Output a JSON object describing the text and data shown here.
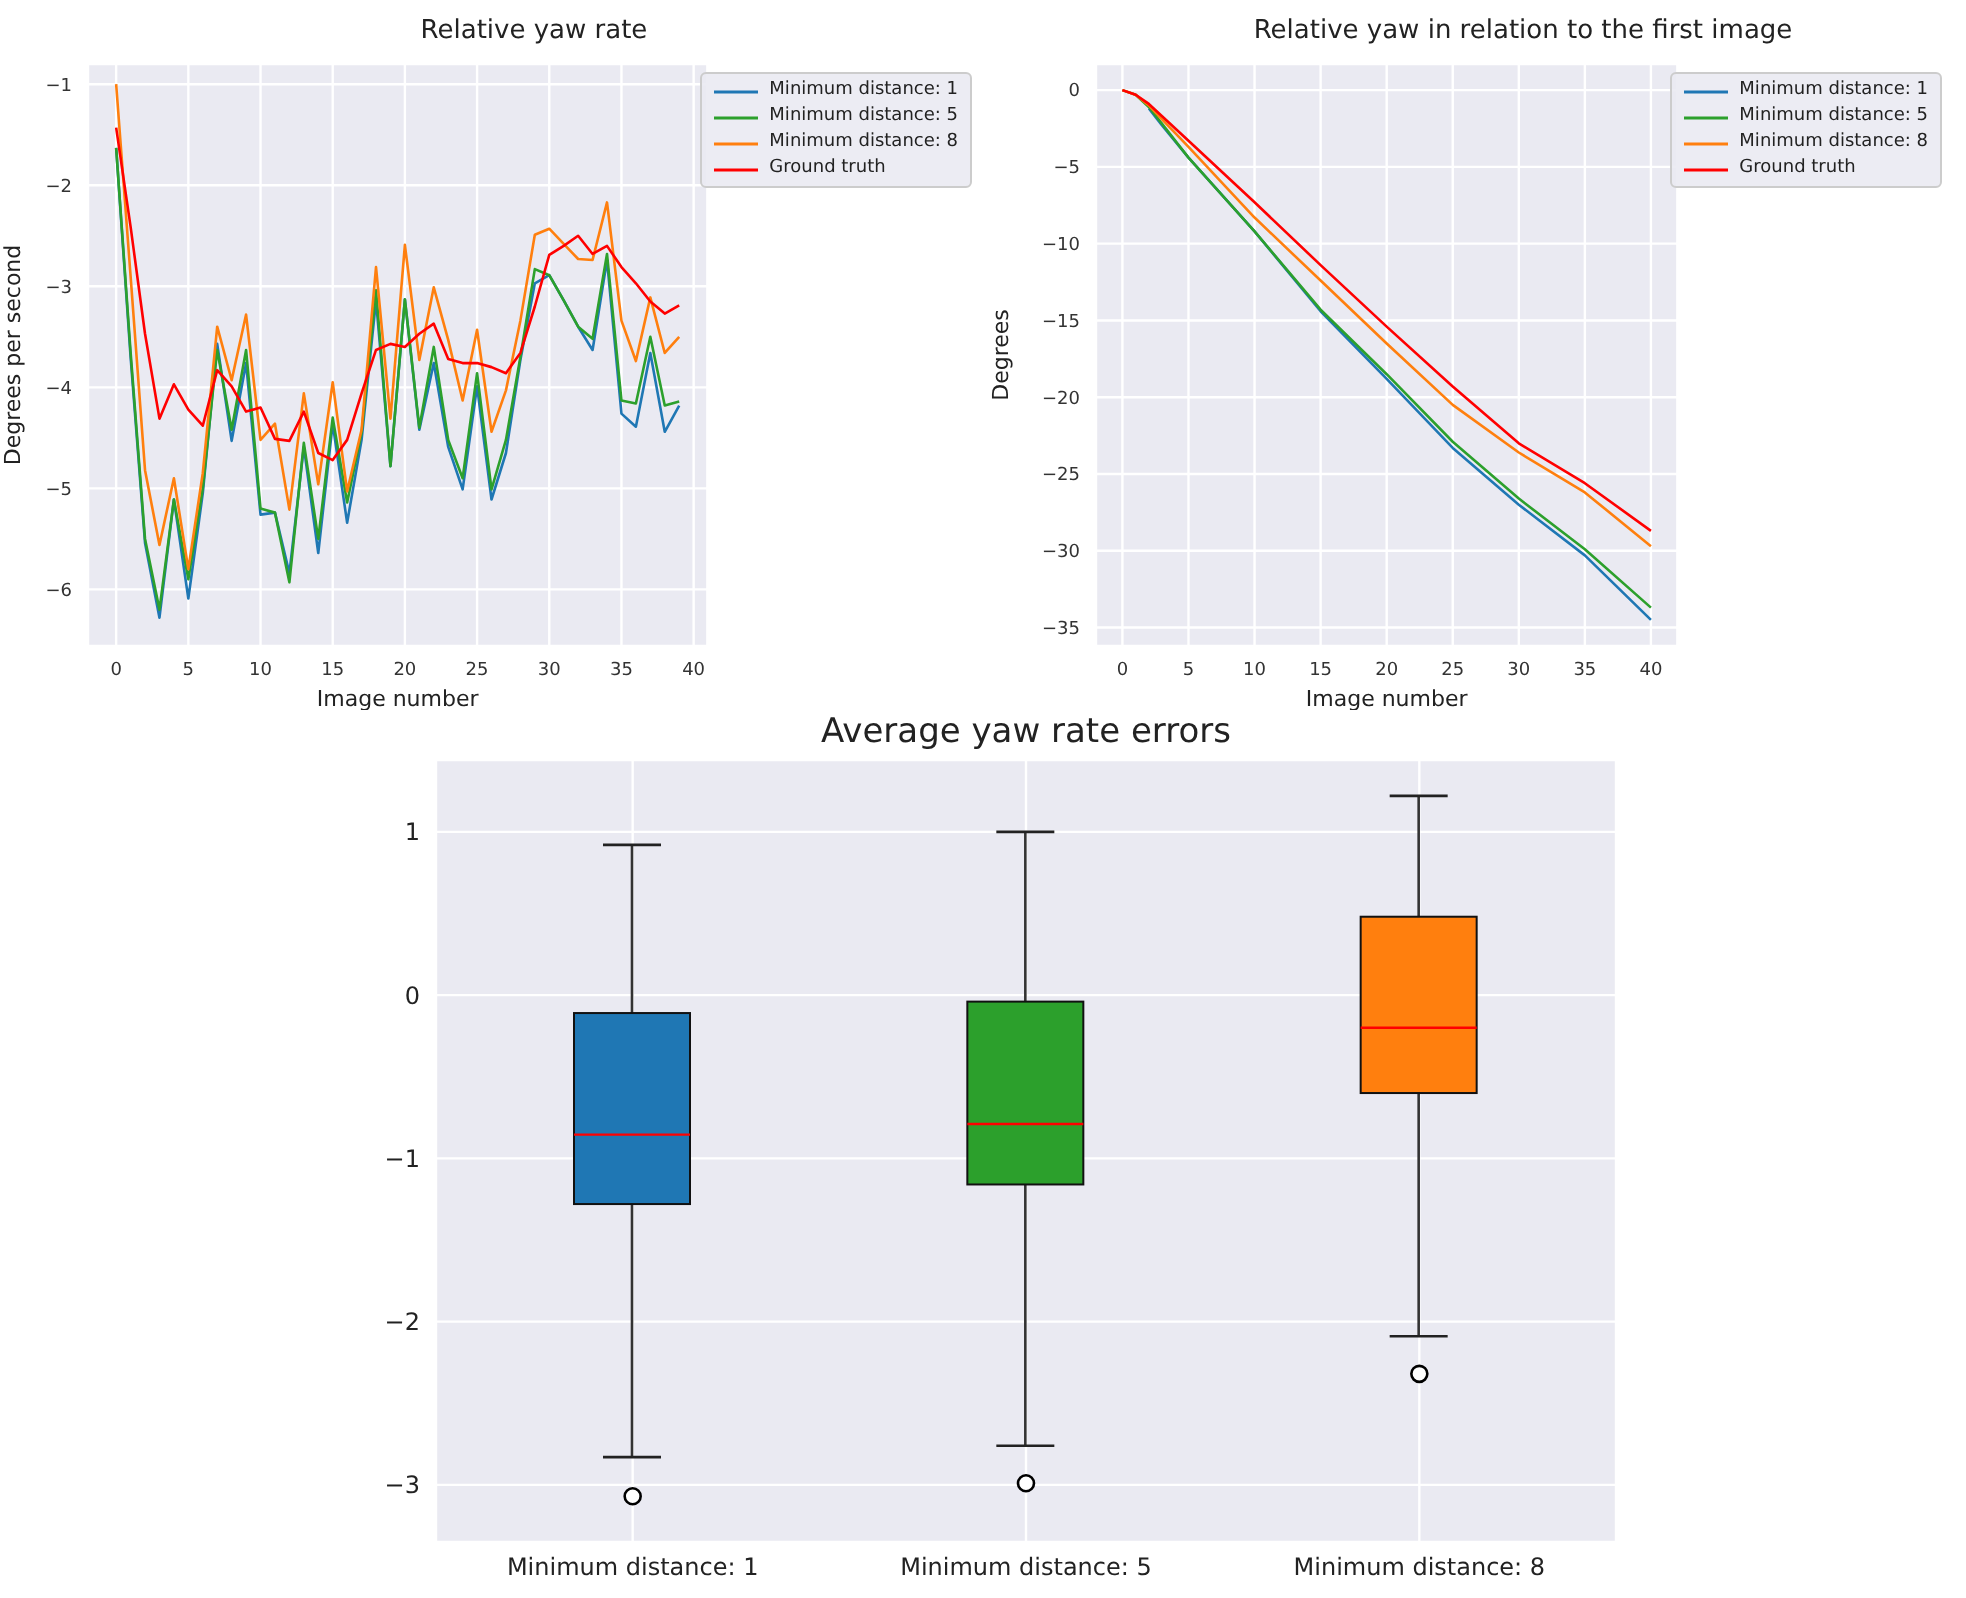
{
  "chart_data": [
    {
      "type": "line",
      "title": "Relative yaw rate",
      "xlabel": "Image number",
      "ylabel": "Degrees per second",
      "x": [
        0,
        1,
        2,
        3,
        4,
        5,
        6,
        7,
        8,
        9,
        10,
        11,
        12,
        13,
        14,
        15,
        16,
        17,
        18,
        19,
        20,
        21,
        22,
        23,
        24,
        25,
        26,
        27,
        28,
        29,
        30,
        31,
        32,
        33,
        34,
        35,
        36,
        37,
        38,
        39
      ],
      "xlim": [
        -1.95,
        40.95
      ],
      "xticks": [
        0,
        5,
        10,
        15,
        20,
        25,
        30,
        35,
        40
      ],
      "ylim": [
        -6.56,
        -0.8
      ],
      "yticks": [
        -6,
        -5,
        -4,
        -3,
        -2,
        -1
      ],
      "grid": true,
      "legend": "top right",
      "series": [
        {
          "name": "Minimum distance: 1",
          "color": "#1f77b4",
          "values": [
            -1.63,
            -3.7,
            -5.54,
            -6.28,
            -5.11,
            -6.09,
            -5.05,
            -3.57,
            -4.53,
            -3.76,
            -5.26,
            -5.24,
            -5.84,
            -4.59,
            -5.64,
            -4.36,
            -5.34,
            -4.52,
            -3.14,
            -4.78,
            -3.13,
            -4.42,
            -3.76,
            -4.59,
            -5.01,
            -3.99,
            -5.11,
            -4.65,
            -3.73,
            -2.97,
            -2.89,
            -3.14,
            -3.4,
            -3.63,
            -2.74,
            -4.26,
            -4.39,
            -3.66,
            -4.44,
            -4.18
          ]
        },
        {
          "name": "Minimum distance: 5",
          "color": "#2ca02c",
          "values": [
            -1.63,
            -3.65,
            -5.5,
            -6.2,
            -5.11,
            -5.9,
            -5.0,
            -3.63,
            -4.42,
            -3.63,
            -5.2,
            -5.24,
            -5.93,
            -4.55,
            -5.5,
            -4.3,
            -5.14,
            -4.45,
            -3.04,
            -4.78,
            -3.13,
            -4.4,
            -3.6,
            -4.52,
            -4.9,
            -3.86,
            -5.01,
            -4.52,
            -3.7,
            -2.83,
            -2.89,
            -3.14,
            -3.4,
            -3.52,
            -2.68,
            -4.13,
            -4.16,
            -3.5,
            -4.18,
            -4.14
          ]
        },
        {
          "name": "Minimum distance: 8",
          "color": "#ff7f0e",
          "values": [
            -1.0,
            -2.9,
            -4.82,
            -5.56,
            -4.9,
            -5.8,
            -4.85,
            -3.4,
            -3.93,
            -3.28,
            -4.52,
            -4.36,
            -5.21,
            -4.06,
            -4.96,
            -3.95,
            -5.03,
            -4.42,
            -2.81,
            -4.31,
            -2.59,
            -3.73,
            -3.01,
            -3.53,
            -4.13,
            -3.43,
            -4.44,
            -4.03,
            -3.34,
            -2.49,
            -2.43,
            -2.58,
            -2.73,
            -2.74,
            -2.17,
            -3.34,
            -3.74,
            -3.11,
            -3.66,
            -3.5
          ]
        },
        {
          "name": "Ground truth",
          "color": "#ff0000",
          "values": [
            -1.43,
            -2.41,
            -3.47,
            -4.31,
            -3.97,
            -4.22,
            -4.38,
            -3.83,
            -3.99,
            -4.24,
            -4.2,
            -4.51,
            -4.53,
            -4.24,
            -4.65,
            -4.72,
            -4.52,
            -4.06,
            -3.63,
            -3.57,
            -3.6,
            -3.47,
            -3.37,
            -3.72,
            -3.76,
            -3.76,
            -3.8,
            -3.86,
            -3.66,
            -3.2,
            -2.69,
            -2.6,
            -2.5,
            -2.68,
            -2.6,
            -2.81,
            -2.97,
            -3.15,
            -3.27,
            -3.19
          ]
        }
      ]
    },
    {
      "type": "line",
      "title": "Relative yaw in relation to the first image",
      "xlabel": "Image number",
      "ylabel": "Degrees",
      "x": [
        0,
        1,
        2,
        3,
        5,
        10,
        15,
        20,
        25,
        30,
        35,
        40
      ],
      "xlim": [
        -2,
        42
      ],
      "xticks": [
        0,
        5,
        10,
        15,
        20,
        25,
        30,
        35,
        40
      ],
      "ylim": [
        -36.2,
        1.7
      ],
      "yticks": [
        -35,
        -30,
        -25,
        -20,
        -15,
        -10,
        -5,
        0
      ],
      "grid": true,
      "legend": "top right",
      "series": [
        {
          "name": "Minimum distance: 1",
          "color": "#1f77b4",
          "values": [
            null,
            null,
            -1.2,
            -2.3,
            -4.4,
            -9.2,
            -14.4,
            -18.8,
            -23.3,
            -27.0,
            -30.3,
            -34.5
          ]
        },
        {
          "name": "Minimum distance: 5",
          "color": "#2ca02c",
          "values": [
            0,
            -0.3,
            -1.1,
            -2.2,
            -4.4,
            -9.2,
            -14.3,
            -18.5,
            -22.9,
            -26.6,
            -29.9,
            -33.7
          ]
        },
        {
          "name": "Minimum distance: 8",
          "color": "#ff7f0e",
          "values": [
            0,
            -0.3,
            -1.0,
            -1.9,
            -3.7,
            -8.3,
            -12.4,
            -16.5,
            -20.5,
            -23.6,
            -26.2,
            -29.7
          ]
        },
        {
          "name": "Ground truth",
          "color": "#ff0000",
          "values": [
            0,
            -0.3,
            -0.9,
            -1.7,
            -3.3,
            -7.3,
            -11.4,
            -15.4,
            -19.3,
            -23.0,
            -25.6,
            -28.7
          ]
        }
      ]
    },
    {
      "type": "box",
      "title": "Average yaw rate errors",
      "categories": [
        "Minimum distance: 1",
        "Minimum distance: 5",
        "Minimum distance: 8"
      ],
      "colors": [
        "#1f77b4",
        "#2ca02c",
        "#ff7f0e"
      ],
      "ylim": [
        -3.35,
        1.44
      ],
      "yticks": [
        -3,
        -2,
        -1,
        0,
        1
      ],
      "grid": true,
      "boxes": [
        {
          "low": -2.83,
          "q1": -1.28,
          "median": -0.855,
          "q3": -0.11,
          "high": 0.92,
          "outliers": [
            -3.07
          ]
        },
        {
          "low": -2.76,
          "q1": -1.16,
          "median": -0.79,
          "q3": -0.04,
          "high": 1.0,
          "outliers": [
            -2.99
          ]
        },
        {
          "low": -2.09,
          "q1": -0.6,
          "median": -0.2,
          "q3": 0.48,
          "high": 1.22,
          "outliers": [
            -2.32
          ]
        }
      ]
    }
  ]
}
